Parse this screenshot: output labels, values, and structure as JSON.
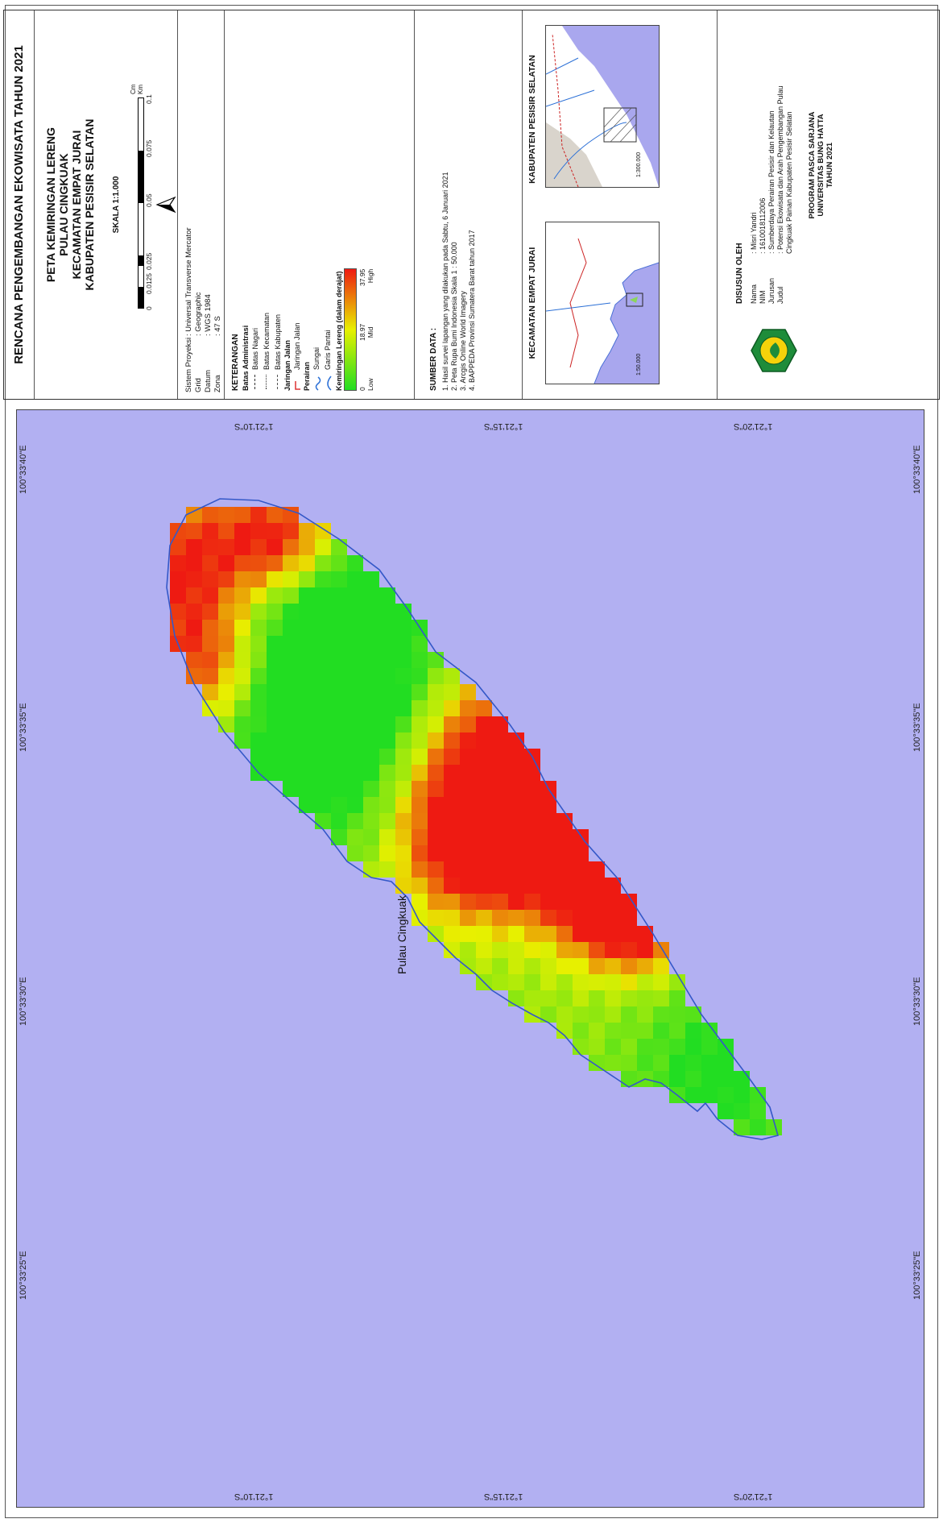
{
  "header": {
    "main_title": "RENCANA PENGEMBANGAN EKOWISATA TAHUN 2021",
    "map_title_lines": [
      "PETA KEMIRINGAN LERENG",
      "PULAU CINGKUAK",
      "KECAMATAN EMPAT JURAI",
      "KABUPATEN PESISIR SELATAN"
    ]
  },
  "scale": {
    "label": "SKALA 1:1.000",
    "ticks": [
      "0",
      "0.0125",
      "0.025",
      "0.05",
      "0.075",
      "0.1"
    ],
    "unit_top": "Cm",
    "unit_bottom": "Km",
    "north": "N"
  },
  "projection": {
    "rows": [
      {
        "label": "Sistem Proyeksi",
        "value": ": Universal Transverse Mercator"
      },
      {
        "label": "Grid",
        "value": ": Geographic"
      },
      {
        "label": "Datum",
        "value": ": WGS 1984"
      },
      {
        "label": "Zona",
        "value": ": 47 S"
      }
    ]
  },
  "legend": {
    "title": "KETERANGAN",
    "groups": [
      {
        "heading": "Batas Administrasi",
        "items": [
          "Batas Nagari",
          "Batas Kecamatan",
          "Batas Kabupaten"
        ]
      },
      {
        "heading": "Jaringan Jalan",
        "items": [
          "Jaringan Jalan"
        ]
      },
      {
        "heading": "Perairan",
        "items": [
          "Sungai",
          "Garis Pantai"
        ]
      }
    ],
    "slope_heading": "Kemiringan Lereng (dalam derajat)",
    "slope_values": [
      "0",
      "18.97",
      "37.95"
    ],
    "slope_labels": [
      "Low",
      "Mid",
      "High"
    ],
    "colors": {
      "low": "#22dd22",
      "mid": "#e8f000",
      "high": "#ee1a12"
    }
  },
  "sources": {
    "heading": "SUMBER DATA :",
    "items": [
      "1. Hasil survei lapangan yang dilakukan pada Sabtu, 6 Januari 2021",
      "2. Peta Rupa Bumi Indonesia Skala 1 : 50.000",
      "3. Arcgis Online World Imagery",
      "4. BAPPEDA Provinsi Sumatera Barat tahun 2017"
    ]
  },
  "insets": [
    {
      "title": "KECAMATAN EMPAT JURAI",
      "scale": "1:50.000"
    },
    {
      "title": "KABUPATEN PESISIR SELATAN",
      "scale": "1:300.000"
    }
  ],
  "author": {
    "heading": "DISUSUN OLEH",
    "rows": [
      {
        "label": "Nama",
        "value": ": Misri Yandri"
      },
      {
        "label": "NIM",
        "value": ": 1610018112006"
      },
      {
        "label": "Jurusan",
        "value": ": Sumberdaya Perairan Pesisir dan Kelautan"
      },
      {
        "label": "Judul",
        "value": ": Potensi Ekowisata dan Arah Pengembangan Pulau Cingkuak Painan Kabupaten Pesisir Selatan"
      }
    ],
    "program": [
      "PROGRAM PASCA SARJANA",
      "UNIVERSITAS BUNG HATTA",
      "TAHUN 2021"
    ]
  },
  "map": {
    "island_label": "Pulau Cingkuak",
    "lon_ticks": [
      "100°33'40\"E",
      "100°33'35\"E",
      "100°33'30\"E",
      "100°33'25\"E"
    ],
    "lat_ticks": [
      "1°21'10\"S",
      "1°21'15\"S",
      "1°21'20\"S"
    ],
    "sea_color": "#b2b0f2"
  }
}
